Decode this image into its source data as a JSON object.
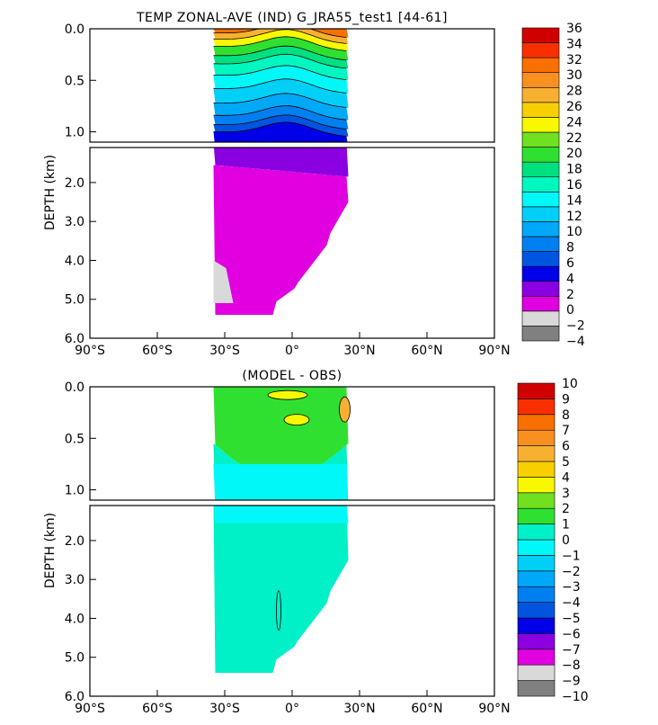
{
  "figure": {
    "background": "#ffffff"
  },
  "chart_data": [
    {
      "id": "top",
      "type": "heatmap",
      "title": "TEMP ZONAL-AVE (IND) G_JRA55_test1 [44-61]",
      "xlabel": "",
      "ylabel": "DEPTH (km)",
      "xlim": [
        -90,
        90
      ],
      "ylim": [
        0,
        6
      ],
      "x_ticks": [
        {
          "value": -90,
          "label": "90°S"
        },
        {
          "value": -60,
          "label": "60°S"
        },
        {
          "value": -30,
          "label": "30°S"
        },
        {
          "value": 0,
          "label": "0°"
        },
        {
          "value": 30,
          "label": "30°N"
        },
        {
          "value": 60,
          "label": "60°N"
        },
        {
          "value": 90,
          "label": "90°N"
        }
      ],
      "upper_y_ticks": [
        {
          "value": 0,
          "label": "0.0"
        },
        {
          "value": 0.5,
          "label": "0.5"
        },
        {
          "value": 1.0,
          "label": "1.0"
        }
      ],
      "lower_y_ticks": [
        {
          "value": 2,
          "label": "2.0"
        },
        {
          "value": 3,
          "label": "3.0"
        },
        {
          "value": 4,
          "label": "4.0"
        },
        {
          "value": 5,
          "label": "5.0"
        },
        {
          "value": 6,
          "label": "6.0"
        }
      ],
      "data_lat_range": [
        -35,
        25
      ],
      "colorbar": {
        "levels": [
          "−4",
          "−2",
          "0",
          "2",
          "4",
          "6",
          "8",
          "10",
          "12",
          "14",
          "16",
          "18",
          "20",
          "22",
          "24",
          "26",
          "28",
          "30",
          "32",
          "34",
          "36"
        ],
        "colors": [
          "#808080",
          "#d9d9d9",
          "#e000e0",
          "#8a00e0",
          "#0000e8",
          "#0055e0",
          "#0080f0",
          "#00a8f8",
          "#00d0f8",
          "#00f8f8",
          "#00f8c0",
          "#00e080",
          "#30e030",
          "#70e020",
          "#f8f800",
          "#f8d000",
          "#f8b030",
          "#f89020",
          "#f87000",
          "#f83000",
          "#d00000"
        ]
      }
    },
    {
      "id": "bottom",
      "type": "heatmap",
      "title": "(MODEL - OBS)",
      "xlabel": "",
      "ylabel": "DEPTH (km)",
      "xlim": [
        -90,
        90
      ],
      "ylim": [
        0,
        6
      ],
      "x_ticks": [
        {
          "value": -90,
          "label": "90°S"
        },
        {
          "value": -60,
          "label": "60°S"
        },
        {
          "value": -30,
          "label": "30°S"
        },
        {
          "value": 0,
          "label": "0°"
        },
        {
          "value": 30,
          "label": "30°N"
        },
        {
          "value": 60,
          "label": "60°N"
        },
        {
          "value": 90,
          "label": "90°N"
        }
      ],
      "upper_y_ticks": [
        {
          "value": 0,
          "label": "0.0"
        },
        {
          "value": 0.5,
          "label": "0.5"
        },
        {
          "value": 1.0,
          "label": "1.0"
        }
      ],
      "lower_y_ticks": [
        {
          "value": 2,
          "label": "2.0"
        },
        {
          "value": 3,
          "label": "3.0"
        },
        {
          "value": 4,
          "label": "4.0"
        },
        {
          "value": 5,
          "label": "5.0"
        },
        {
          "value": 6,
          "label": "6.0"
        }
      ],
      "data_lat_range": [
        -35,
        25
      ],
      "colorbar": {
        "levels": [
          "−10",
          "−9",
          "−8",
          "−7",
          "−6",
          "−5",
          "−4",
          "−3",
          "−2",
          "−1",
          "0",
          "1",
          "2",
          "3",
          "4",
          "5",
          "6",
          "7",
          "8",
          "9",
          "10"
        ],
        "colors": [
          "#808080",
          "#d9d9d9",
          "#e000e0",
          "#8a00e0",
          "#0000e8",
          "#0055e0",
          "#0080f0",
          "#00a8f8",
          "#00d0f8",
          "#00f8f8",
          "#00f0c8",
          "#30e030",
          "#70e020",
          "#f8f800",
          "#f8d000",
          "#f8b030",
          "#f89020",
          "#f87000",
          "#f83000",
          "#d00000"
        ]
      }
    }
  ]
}
